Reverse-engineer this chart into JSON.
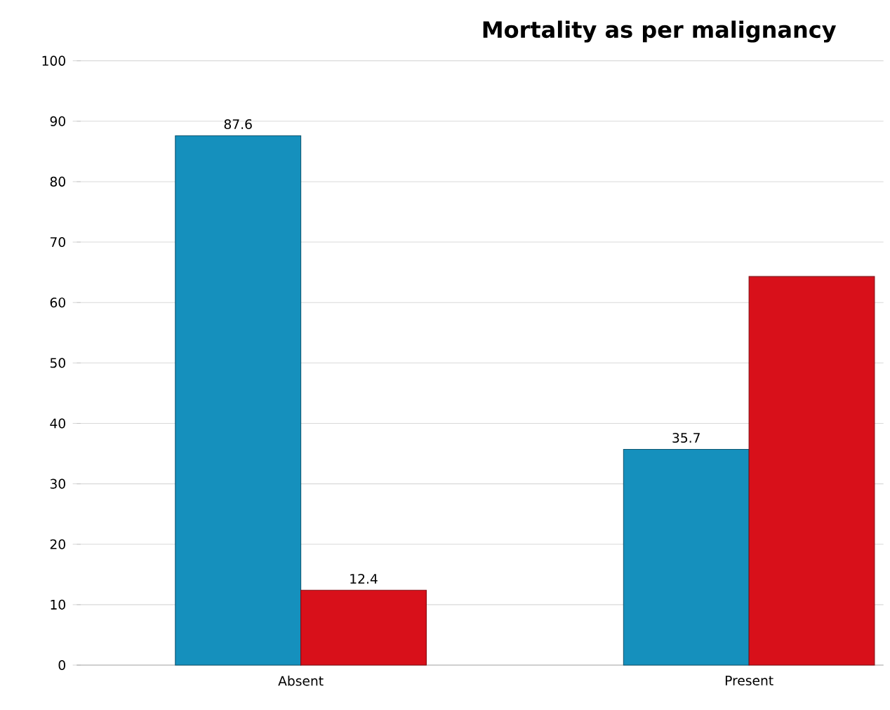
{
  "chart_data": {
    "type": "bar",
    "title": "Mortality as per malignancy",
    "categories": [
      "Absent",
      "Present"
    ],
    "series": [
      {
        "color": "#1590bd",
        "values": [
          87.6,
          35.7
        ],
        "value_labels": [
          "87.6",
          "35.7"
        ]
      },
      {
        "color": "#d8101a",
        "values": [
          12.4,
          64.3
        ],
        "value_labels": [
          "12.4",
          null
        ]
      }
    ],
    "ylim": [
      0,
      100
    ],
    "yticks": [
      0,
      10,
      20,
      30,
      40,
      50,
      60,
      70,
      80,
      90,
      100
    ],
    "grid": "y"
  }
}
